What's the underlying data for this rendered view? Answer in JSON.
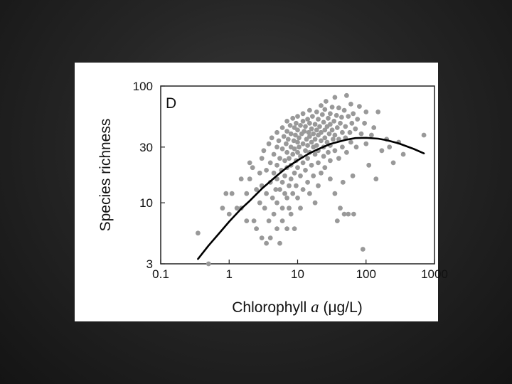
{
  "chart_data": {
    "type": "scatter",
    "panel_label": "D",
    "xlabel": {
      "prefix": "Chlorophyll ",
      "italic": "a",
      "suffix": " (μg/L)"
    },
    "ylabel": "Species richness",
    "x_scale": "log",
    "y_scale": "log",
    "xlim": [
      0.1,
      1000
    ],
    "ylim": [
      3,
      100
    ],
    "x_ticks": [
      {
        "value": 0.1,
        "label": "0.1"
      },
      {
        "value": 1,
        "label": "1"
      },
      {
        "value": 10,
        "label": "10"
      },
      {
        "value": 100,
        "label": "100"
      },
      {
        "value": 1000,
        "label": "1000"
      }
    ],
    "y_ticks": [
      {
        "value": 3,
        "label": "3"
      },
      {
        "value": 10,
        "label": "10"
      },
      {
        "value": 30,
        "label": "30"
      },
      {
        "value": 100,
        "label": "100"
      }
    ],
    "grid": false,
    "legend": "none",
    "point_color": "#999999",
    "curve_color": "#000000",
    "points": [
      [
        0.35,
        5.5
      ],
      [
        0.5,
        3
      ],
      [
        0.8,
        9
      ],
      [
        0.9,
        12
      ],
      [
        1,
        8
      ],
      [
        1.1,
        12
      ],
      [
        1.3,
        9
      ],
      [
        1.5,
        16
      ],
      [
        1.5,
        9
      ],
      [
        1.8,
        7
      ],
      [
        1.8,
        12
      ],
      [
        2,
        16
      ],
      [
        2,
        22
      ],
      [
        2.2,
        20
      ],
      [
        2.3,
        7
      ],
      [
        2.5,
        13
      ],
      [
        2.5,
        6
      ],
      [
        2.8,
        10
      ],
      [
        2.8,
        18
      ],
      [
        3,
        24
      ],
      [
        3,
        14
      ],
      [
        3,
        5
      ],
      [
        3.2,
        28
      ],
      [
        3.3,
        9
      ],
      [
        3.5,
        19
      ],
      [
        3.5,
        12
      ],
      [
        3.5,
        4.5
      ],
      [
        3.8,
        32
      ],
      [
        3.8,
        7
      ],
      [
        4,
        22
      ],
      [
        4,
        15
      ],
      [
        4,
        5
      ],
      [
        4.2,
        36
      ],
      [
        4.3,
        11
      ],
      [
        4.5,
        26
      ],
      [
        4.5,
        18
      ],
      [
        4.5,
        8
      ],
      [
        4.8,
        13
      ],
      [
        5,
        40
      ],
      [
        5,
        30
      ],
      [
        5,
        21
      ],
      [
        5,
        16
      ],
      [
        5,
        10
      ],
      [
        5,
        6
      ],
      [
        5.3,
        34
      ],
      [
        5.5,
        24
      ],
      [
        5.5,
        13
      ],
      [
        5.5,
        4.5
      ],
      [
        5.8,
        19
      ],
      [
        6,
        44
      ],
      [
        6,
        29
      ],
      [
        6,
        15
      ],
      [
        6,
        9
      ],
      [
        6,
        7
      ],
      [
        6.3,
        37
      ],
      [
        6.5,
        23
      ],
      [
        6.5,
        17
      ],
      [
        6.5,
        12
      ],
      [
        6.8,
        32
      ],
      [
        7,
        50
      ],
      [
        7,
        41
      ],
      [
        7,
        27
      ],
      [
        7,
        20
      ],
      [
        7,
        11
      ],
      [
        7,
        6
      ],
      [
        7.3,
        35
      ],
      [
        7.5,
        24
      ],
      [
        7.5,
        14
      ],
      [
        7.5,
        9
      ],
      [
        7.8,
        46
      ],
      [
        8,
        39
      ],
      [
        8,
        30
      ],
      [
        8,
        21
      ],
      [
        8,
        16
      ],
      [
        8,
        8
      ],
      [
        8.5,
        53
      ],
      [
        8.5,
        26
      ],
      [
        8.5,
        12
      ],
      [
        8.8,
        34
      ],
      [
        9,
        44
      ],
      [
        9,
        29
      ],
      [
        9,
        18
      ],
      [
        9,
        6
      ],
      [
        9.3,
        38
      ],
      [
        9.5,
        48
      ],
      [
        9.5,
        23
      ],
      [
        9.5,
        14
      ],
      [
        10,
        55
      ],
      [
        10,
        42
      ],
      [
        10,
        33
      ],
      [
        10,
        27
      ],
      [
        10,
        20
      ],
      [
        10,
        11
      ],
      [
        10.5,
        36
      ],
      [
        10.5,
        30
      ],
      [
        11,
        46
      ],
      [
        11,
        25
      ],
      [
        11,
        17
      ],
      [
        11,
        9
      ],
      [
        11.5,
        39
      ],
      [
        12,
        58
      ],
      [
        12,
        50
      ],
      [
        12,
        32
      ],
      [
        12,
        22
      ],
      [
        12,
        13
      ],
      [
        12.5,
        41
      ],
      [
        13,
        45
      ],
      [
        13,
        28
      ],
      [
        13,
        19
      ],
      [
        13.5,
        35
      ],
      [
        14,
        52
      ],
      [
        14,
        31
      ],
      [
        14,
        24
      ],
      [
        14,
        15
      ],
      [
        14.5,
        40
      ],
      [
        15,
        62
      ],
      [
        15,
        48
      ],
      [
        15,
        37
      ],
      [
        15,
        27
      ],
      [
        15,
        12
      ],
      [
        16,
        43
      ],
      [
        16,
        33
      ],
      [
        16,
        21
      ],
      [
        16.5,
        55
      ],
      [
        17,
        30
      ],
      [
        17,
        39
      ],
      [
        17,
        17
      ],
      [
        18,
        47
      ],
      [
        18,
        35
      ],
      [
        18,
        26
      ],
      [
        18,
        10
      ],
      [
        19,
        60
      ],
      [
        19,
        42
      ],
      [
        19,
        31
      ],
      [
        20,
        52
      ],
      [
        20,
        38
      ],
      [
        20,
        28
      ],
      [
        20,
        22
      ],
      [
        20,
        14
      ],
      [
        21,
        45
      ],
      [
        22,
        68
      ],
      [
        22,
        34
      ],
      [
        22,
        40
      ],
      [
        22,
        18
      ],
      [
        23,
        57
      ],
      [
        24,
        30
      ],
      [
        24,
        49
      ],
      [
        24,
        25
      ],
      [
        25,
        63
      ],
      [
        25,
        42
      ],
      [
        25,
        36
      ],
      [
        25,
        20
      ],
      [
        26,
        74
      ],
      [
        27,
        45
      ],
      [
        27,
        33
      ],
      [
        28,
        53
      ],
      [
        28,
        27
      ],
      [
        29,
        39
      ],
      [
        30,
        58
      ],
      [
        30,
        47
      ],
      [
        30,
        31
      ],
      [
        30,
        23
      ],
      [
        30,
        16
      ],
      [
        32,
        66
      ],
      [
        32,
        42
      ],
      [
        33,
        35
      ],
      [
        34,
        50
      ],
      [
        35,
        80
      ],
      [
        35,
        38
      ],
      [
        35,
        28
      ],
      [
        35,
        12
      ],
      [
        37,
        56
      ],
      [
        38,
        44
      ],
      [
        38,
        7
      ],
      [
        40,
        65
      ],
      [
        40,
        35
      ],
      [
        40,
        24
      ],
      [
        42,
        48
      ],
      [
        42,
        9
      ],
      [
        44,
        54
      ],
      [
        45,
        40
      ],
      [
        45,
        30
      ],
      [
        46,
        15
      ],
      [
        48,
        62
      ],
      [
        48,
        8
      ],
      [
        50,
        45
      ],
      [
        50,
        36
      ],
      [
        52,
        83
      ],
      [
        52,
        27
      ],
      [
        55,
        55
      ],
      [
        55,
        8
      ],
      [
        58,
        40
      ],
      [
        60,
        70
      ],
      [
        60,
        33
      ],
      [
        62,
        48
      ],
      [
        64,
        17
      ],
      [
        65,
        58
      ],
      [
        66,
        8
      ],
      [
        70,
        43
      ],
      [
        72,
        30
      ],
      [
        75,
        52
      ],
      [
        80,
        67
      ],
      [
        85,
        39
      ],
      [
        90,
        4
      ],
      [
        95,
        48
      ],
      [
        100,
        60
      ],
      [
        100,
        32
      ],
      [
        110,
        21
      ],
      [
        120,
        38
      ],
      [
        130,
        44
      ],
      [
        140,
        16
      ],
      [
        150,
        60
      ],
      [
        170,
        28
      ],
      [
        200,
        35
      ],
      [
        220,
        30
      ],
      [
        250,
        22
      ],
      [
        300,
        33
      ],
      [
        350,
        26
      ],
      [
        700,
        38
      ]
    ],
    "curve": [
      [
        0.35,
        3.3
      ],
      [
        0.5,
        4.3
      ],
      [
        0.7,
        5.4
      ],
      [
        1,
        6.9
      ],
      [
        1.5,
        8.9
      ],
      [
        2,
        10.4
      ],
      [
        3,
        13.2
      ],
      [
        5,
        17.1
      ],
      [
        7,
        20.1
      ],
      [
        10,
        23.1
      ],
      [
        15,
        26.6
      ],
      [
        20,
        28.8
      ],
      [
        30,
        31.9
      ],
      [
        50,
        34.6
      ],
      [
        70,
        35.8
      ],
      [
        100,
        36.0
      ],
      [
        150,
        35.4
      ],
      [
        200,
        34.4
      ],
      [
        300,
        32.3
      ],
      [
        500,
        28.9
      ],
      [
        700,
        26.5
      ]
    ]
  }
}
